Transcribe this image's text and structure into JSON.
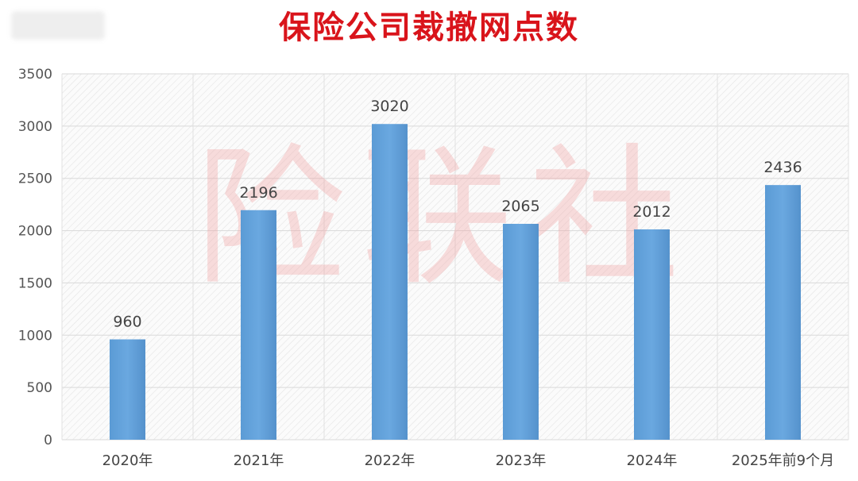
{
  "chart_data": {
    "type": "bar",
    "title": "保险公司裁撤网点数",
    "categories": [
      "2020年",
      "2021年",
      "2022年",
      "2023年",
      "2024年",
      "2025年前9个月"
    ],
    "values": [
      960,
      2196,
      3020,
      2065,
      2012,
      2436
    ],
    "data_labels": [
      "960",
      "2196",
      "3020",
      "2065",
      "2012",
      "2436"
    ],
    "xlabel": "",
    "ylabel": "",
    "ylim": [
      0,
      3500
    ],
    "yticks": [
      0,
      500,
      1000,
      1500,
      2000,
      2500,
      3000,
      3500
    ],
    "grid": true,
    "legend": "none",
    "bar_color": "#5b9bd5",
    "title_color": "#d9141b"
  },
  "watermark": "险联社"
}
